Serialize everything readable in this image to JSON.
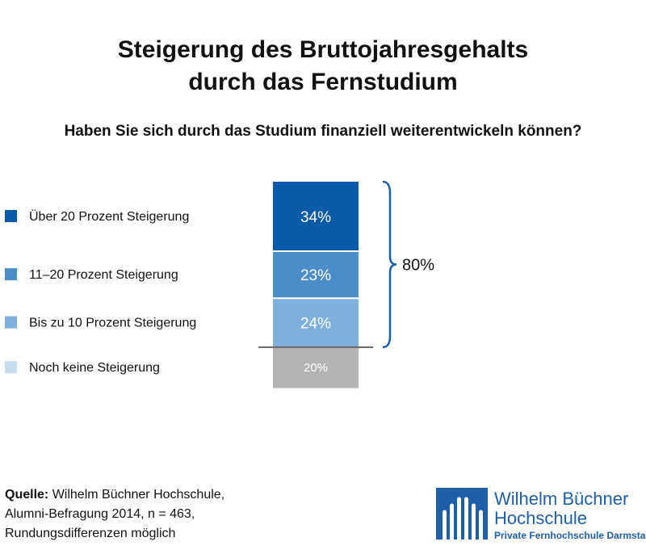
{
  "chart_data": {
    "type": "bar",
    "stacked": true,
    "title": "Steigerung des Bruttojahresgehalts durch das Fernstudium",
    "title_lines": [
      "Steigerung des Bruttojahresgehalts",
      "durch das Fernstudium"
    ],
    "subtitle": "Haben Sie sich durch das Studium finanziell weiterentwickeln können?",
    "unit": "%",
    "series": [
      {
        "name": "Über 20 Prozent Steigerung",
        "value": 34,
        "label": "34%",
        "color": "#0a5aa9"
      },
      {
        "name": "11–20 Prozent Steigerung",
        "value": 23,
        "label": "23%",
        "color": "#4a8ec9"
      },
      {
        "name": "Bis zu 10 Prozent Steigerung",
        "value": 24,
        "label": "24%",
        "color": "#7fb0db"
      },
      {
        "name": "Noch keine Steigerung",
        "value": 20,
        "label": "20%",
        "color": "#b3b3b3",
        "legend_color": "#c5dcee"
      }
    ],
    "bracket": {
      "label": "80%",
      "covers": [
        "Über 20 Prozent Steigerung",
        "11–20 Prozent Steigerung",
        "Bis zu 10 Prozent Steigerung"
      ]
    },
    "baseline_color": "#666666",
    "bracket_color": "#1f5fa8"
  },
  "source": {
    "label": "Quelle:",
    "lines": [
      "Wilhelm Büchner Hochschule,",
      "Alumni-Befragung 2014, n = 463,",
      "Rundungsdifferenzen möglich"
    ]
  },
  "logo": {
    "name_lines": [
      "Wilhelm Büchner",
      "Hochschule"
    ],
    "tagline": "Private Fernhochschule Darmstadt",
    "color": "#1f5fa8"
  }
}
